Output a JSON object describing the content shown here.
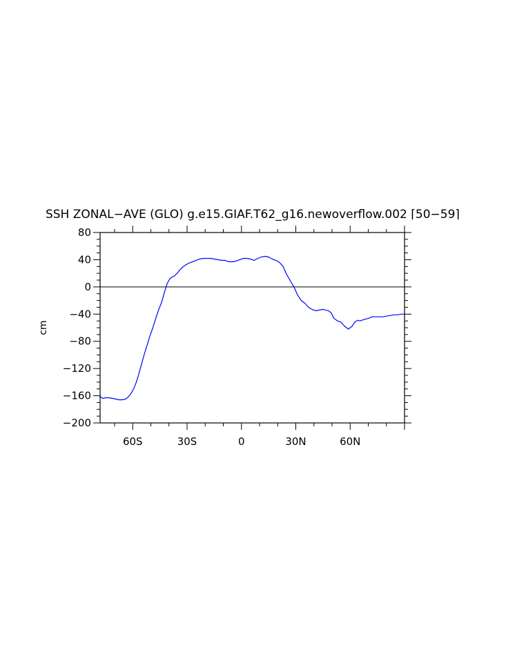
{
  "chart_data": {
    "type": "line",
    "title": "SSH ZONAL−AVE (GLO) g.e15.GIAF.T62_g16.newoverflow.002 ⌈50−59⌉",
    "xlabel": "",
    "ylabel": "cm",
    "xlim": [
      -78,
      90
    ],
    "ylim": [
      -200,
      80
    ],
    "x_ticks": [
      {
        "value": -60,
        "label": "60S"
      },
      {
        "value": -30,
        "label": "30S"
      },
      {
        "value": 0,
        "label": "0"
      },
      {
        "value": 30,
        "label": "30N"
      },
      {
        "value": 60,
        "label": "60N"
      }
    ],
    "y_ticks": [
      {
        "value": 80,
        "label": "80"
      },
      {
        "value": 40,
        "label": "40"
      },
      {
        "value": 0,
        "label": "0"
      },
      {
        "value": -40,
        "label": "−40"
      },
      {
        "value": -80,
        "label": "−80"
      },
      {
        "value": -120,
        "label": "−120"
      },
      {
        "value": -160,
        "label": "−160"
      },
      {
        "value": -200,
        "label": "−200"
      }
    ],
    "reference_line": {
      "y": 0,
      "color": "#000000"
    },
    "series": [
      {
        "color": "#0000ff",
        "x": [
          -78,
          -76.5,
          -75,
          -73,
          -71,
          -69,
          -67.5,
          -66,
          -64,
          -62.5,
          -61,
          -59.5,
          -58,
          -56.5,
          -55,
          -53.5,
          -52,
          -50.5,
          -49,
          -47.5,
          -46,
          -44,
          -42.5,
          -41,
          -39.5,
          -38,
          -37,
          -35.5,
          -34,
          -32.5,
          -31,
          -29,
          -27,
          -25,
          -23,
          -21,
          -19,
          -17,
          -15,
          -13,
          -11,
          -9,
          -7,
          -5,
          -3,
          -1,
          1,
          3,
          5,
          7,
          9,
          11,
          13,
          15,
          17,
          19,
          21,
          23,
          25,
          27,
          29,
          31,
          33,
          35,
          37,
          39,
          41,
          43,
          45,
          46.5,
          48,
          49.5,
          51,
          53,
          55,
          57,
          59,
          61,
          62.5,
          64,
          65.5,
          66.5,
          67.5,
          69,
          70.5,
          72,
          74,
          76,
          78,
          80,
          82,
          84,
          86,
          88,
          90
        ],
        "y": [
          -161,
          -164,
          -163,
          -163,
          -164,
          -165,
          -166,
          -166,
          -165,
          -162,
          -157,
          -150,
          -140,
          -127,
          -112,
          -98,
          -85,
          -72,
          -61,
          -48,
          -36,
          -22,
          -8,
          5,
          12,
          15,
          16,
          20,
          25,
          29,
          32,
          35,
          37,
          39,
          41,
          42,
          42,
          42,
          41,
          40,
          39,
          39,
          37,
          37,
          38,
          40,
          42,
          42,
          41,
          39,
          42,
          44,
          45,
          44,
          41,
          39,
          36,
          30,
          18,
          9,
          0,
          -12,
          -20,
          -24,
          -30,
          -33,
          -35,
          -34,
          -33,
          -34,
          -35,
          -38,
          -46,
          -50,
          -52,
          -58,
          -62,
          -58,
          -52,
          -49,
          -50,
          -49,
          -48,
          -47,
          -46,
          -44,
          -44,
          -44,
          -44,
          -43,
          -42,
          -41,
          -41,
          -40,
          -40
        ]
      }
    ]
  }
}
